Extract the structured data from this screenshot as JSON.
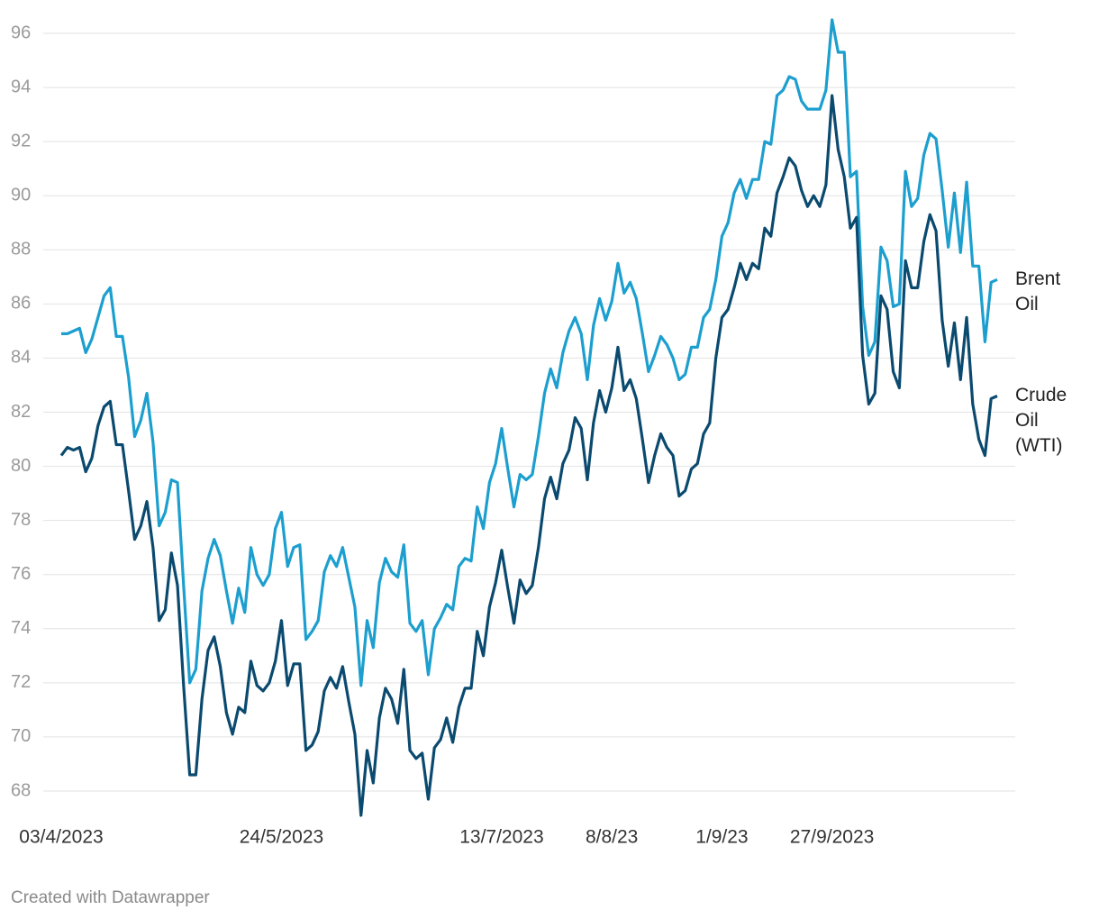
{
  "chart_data": {
    "type": "line",
    "categories": [
      "03/4/2023",
      null,
      null,
      null,
      null,
      null,
      null,
      null,
      null,
      null,
      null,
      null,
      null,
      null,
      null,
      null,
      null,
      null,
      null,
      null,
      null,
      null,
      null,
      null,
      null,
      null,
      null,
      null,
      null,
      null,
      null,
      null,
      null,
      null,
      null,
      null,
      "24/5/2023",
      null,
      null,
      null,
      null,
      null,
      null,
      null,
      null,
      null,
      null,
      null,
      null,
      null,
      null,
      null,
      null,
      null,
      null,
      null,
      null,
      null,
      null,
      null,
      null,
      null,
      null,
      null,
      null,
      null,
      null,
      null,
      null,
      null,
      null,
      null,
      "13/7/2023",
      null,
      null,
      null,
      null,
      null,
      null,
      null,
      null,
      null,
      null,
      null,
      null,
      null,
      null,
      null,
      null,
      null,
      "8/8/23",
      null,
      null,
      null,
      null,
      null,
      null,
      null,
      null,
      null,
      null,
      null,
      null,
      null,
      null,
      null,
      null,
      null,
      "1/9/23",
      null,
      null,
      null,
      null,
      null,
      null,
      null,
      null,
      null,
      null,
      null,
      null,
      null,
      null,
      null,
      null,
      null,
      "27/9/2023",
      null,
      null,
      null,
      null,
      null,
      null,
      null,
      null,
      null,
      null,
      null,
      null,
      null,
      null,
      null,
      null,
      null,
      null,
      null,
      null,
      null,
      null,
      null,
      null,
      null,
      null,
      null
    ],
    "series": [
      {
        "name": "Brent Oil",
        "color": "#1c9fcf",
        "values": [
          84.9,
          84.9,
          85.0,
          85.1,
          84.2,
          84.7,
          85.5,
          86.3,
          86.6,
          84.8,
          84.8,
          83.3,
          81.1,
          81.7,
          82.7,
          80.9,
          77.8,
          78.3,
          79.5,
          79.4,
          75.6,
          72.0,
          72.5,
          75.4,
          76.6,
          77.3,
          76.7,
          75.4,
          74.2,
          75.5,
          74.6,
          77.0,
          76.0,
          75.6,
          76.0,
          77.7,
          78.3,
          76.3,
          77.0,
          77.1,
          73.6,
          73.9,
          74.3,
          76.1,
          76.7,
          76.3,
          77.0,
          75.9,
          74.8,
          71.9,
          74.3,
          73.3,
          75.7,
          76.6,
          76.1,
          75.9,
          77.1,
          74.2,
          73.9,
          74.3,
          72.3,
          74.0,
          74.4,
          74.9,
          74.7,
          76.3,
          76.6,
          76.5,
          78.5,
          77.7,
          79.4,
          80.1,
          81.4,
          79.9,
          78.5,
          79.7,
          79.5,
          79.7,
          81.1,
          82.7,
          83.6,
          82.9,
          84.2,
          85.0,
          85.5,
          84.9,
          83.2,
          85.2,
          86.2,
          85.4,
          86.1,
          87.5,
          86.4,
          86.8,
          86.2,
          84.9,
          83.5,
          84.1,
          84.8,
          84.5,
          84.0,
          83.2,
          83.4,
          84.4,
          84.4,
          85.5,
          85.8,
          86.9,
          88.5,
          89.0,
          90.1,
          90.6,
          89.9,
          90.6,
          90.6,
          92.0,
          91.9,
          93.7,
          93.9,
          94.4,
          94.3,
          93.5,
          93.2,
          93.2,
          93.2,
          93.9,
          96.5,
          95.3,
          95.3,
          90.7,
          90.9,
          85.9,
          84.1,
          84.6,
          88.1,
          87.6,
          85.9,
          86.0,
          90.9,
          89.6,
          89.9,
          91.5,
          92.3,
          92.1,
          90.2,
          88.1,
          90.1,
          87.9,
          90.5,
          87.4,
          87.4,
          84.6,
          86.8,
          86.9
        ]
      },
      {
        "name": "Crude Oil (WTI)",
        "color": "#0b4a6f",
        "values": [
          80.4,
          80.7,
          80.6,
          80.7,
          79.8,
          80.3,
          81.5,
          82.2,
          82.4,
          80.8,
          80.8,
          79.1,
          77.3,
          77.8,
          78.7,
          77.0,
          74.3,
          74.7,
          76.8,
          75.6,
          71.9,
          68.6,
          68.6,
          71.4,
          73.2,
          73.7,
          72.6,
          70.9,
          70.1,
          71.1,
          70.9,
          72.8,
          71.9,
          71.7,
          72.0,
          72.8,
          74.3,
          71.9,
          72.7,
          72.7,
          69.5,
          69.7,
          70.2,
          71.7,
          72.2,
          71.8,
          72.6,
          71.3,
          70.1,
          67.1,
          69.5,
          68.3,
          70.7,
          71.8,
          71.4,
          70.5,
          72.5,
          69.5,
          69.2,
          69.4,
          67.7,
          69.6,
          69.9,
          70.7,
          69.8,
          71.1,
          71.8,
          71.8,
          73.9,
          73.0,
          74.8,
          75.7,
          76.9,
          75.5,
          74.2,
          75.8,
          75.3,
          75.6,
          77.0,
          78.8,
          79.6,
          78.8,
          80.1,
          80.6,
          81.8,
          81.4,
          79.5,
          81.6,
          82.8,
          82.0,
          82.9,
          84.4,
          82.8,
          83.2,
          82.5,
          81.0,
          79.4,
          80.4,
          81.2,
          80.7,
          80.4,
          78.9,
          79.1,
          79.9,
          80.1,
          81.2,
          81.6,
          84.0,
          85.5,
          85.8,
          86.6,
          87.5,
          86.9,
          87.5,
          87.3,
          88.8,
          88.5,
          90.1,
          90.7,
          91.4,
          91.1,
          90.2,
          89.6,
          90.0,
          89.6,
          90.4,
          93.7,
          91.7,
          90.7,
          88.8,
          89.2,
          84.1,
          82.3,
          82.7,
          86.3,
          85.8,
          83.5,
          82.9,
          87.6,
          86.6,
          86.6,
          88.3,
          89.3,
          88.7,
          85.4,
          83.7,
          85.3,
          83.2,
          85.5,
          82.3,
          81.0,
          80.4,
          82.5,
          82.6
        ]
      }
    ],
    "ylim": [
      67,
      97
    ],
    "yticks": [
      68,
      70,
      72,
      74,
      76,
      78,
      80,
      82,
      84,
      86,
      88,
      90,
      92,
      94,
      96
    ],
    "grid": true,
    "legend": "right",
    "credit": "Created with Datawrapper"
  }
}
